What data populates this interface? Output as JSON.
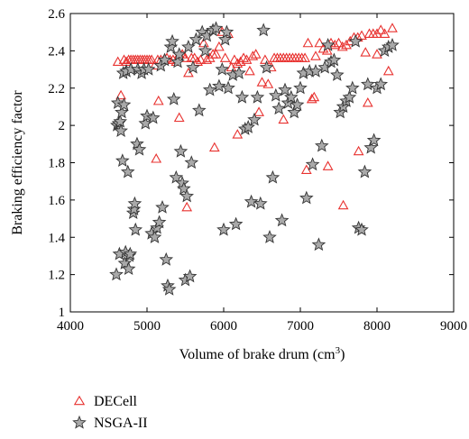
{
  "chart_data": {
    "type": "scatter",
    "title": "",
    "xlabel": "Volume of brake drum (cm",
    "xlabel_sup": "3",
    "xlabel_end": ")",
    "ylabel": "Braking efficiency factor",
    "xlim": [
      4000,
      9000
    ],
    "ylim": [
      1,
      2.6
    ],
    "xticks": [
      4000,
      5000,
      6000,
      7000,
      8000,
      9000
    ],
    "yticks": [
      1,
      1.2,
      1.4,
      1.6,
      1.8,
      2,
      2.2,
      2.4,
      2.6
    ],
    "grid": false,
    "legend_position": "below",
    "series": [
      {
        "name": "DECell",
        "marker": "triangle",
        "color": "#e8312f",
        "points": [
          [
            4620,
            2.34
          ],
          [
            4660,
            2.16
          ],
          [
            4700,
            2.35
          ],
          [
            4730,
            2.34
          ],
          [
            4760,
            2.35
          ],
          [
            4790,
            2.35
          ],
          [
            4820,
            2.35
          ],
          [
            4850,
            2.35
          ],
          [
            4880,
            2.35
          ],
          [
            4910,
            2.35
          ],
          [
            4940,
            2.35
          ],
          [
            4970,
            2.35
          ],
          [
            5000,
            2.35
          ],
          [
            5030,
            2.35
          ],
          [
            5060,
            2.35
          ],
          [
            5100,
            2.32
          ],
          [
            5140,
            2.35
          ],
          [
            5180,
            2.35
          ],
          [
            5220,
            2.35
          ],
          [
            5260,
            2.36
          ],
          [
            5300,
            2.35
          ],
          [
            5340,
            2.35
          ],
          [
            5380,
            2.34
          ],
          [
            5420,
            2.38
          ],
          [
            5460,
            2.38
          ],
          [
            5500,
            2.36
          ],
          [
            5540,
            2.28
          ],
          [
            5580,
            2.36
          ],
          [
            5620,
            2.36
          ],
          [
            5660,
            2.34
          ],
          [
            5700,
            2.35
          ],
          [
            5740,
            2.44
          ],
          [
            5780,
            2.35
          ],
          [
            5820,
            2.36
          ],
          [
            5860,
            2.38
          ],
          [
            5900,
            2.38
          ],
          [
            5940,
            2.42
          ],
          [
            5980,
            2.5
          ],
          [
            6020,
            2.36
          ],
          [
            6060,
            2.49
          ],
          [
            6100,
            2.31
          ],
          [
            6140,
            2.35
          ],
          [
            6180,
            2.33
          ],
          [
            6220,
            2.34
          ],
          [
            6260,
            2.36
          ],
          [
            6300,
            2.35
          ],
          [
            6340,
            2.29
          ],
          [
            6380,
            2.37
          ],
          [
            6420,
            2.38
          ],
          [
            6460,
            2.07
          ],
          [
            6500,
            2.23
          ],
          [
            6540,
            2.35
          ],
          [
            6580,
            2.22
          ],
          [
            6620,
            2.31
          ],
          [
            6660,
            2.36
          ],
          [
            6700,
            2.36
          ],
          [
            6740,
            2.36
          ],
          [
            6780,
            2.36
          ],
          [
            6820,
            2.36
          ],
          [
            6860,
            2.36
          ],
          [
            6900,
            2.36
          ],
          [
            6940,
            2.36
          ],
          [
            6980,
            2.36
          ],
          [
            7020,
            2.36
          ],
          [
            7060,
            2.36
          ],
          [
            7100,
            2.44
          ],
          [
            7150,
            2.14
          ],
          [
            7200,
            2.37
          ],
          [
            7250,
            2.44
          ],
          [
            7300,
            2.41
          ],
          [
            7350,
            2.4
          ],
          [
            7400,
            2.44
          ],
          [
            7450,
            2.43
          ],
          [
            7500,
            2.44
          ],
          [
            7550,
            2.42
          ],
          [
            7600,
            2.43
          ],
          [
            7650,
            2.45
          ],
          [
            7700,
            2.47
          ],
          [
            7750,
            2.47
          ],
          [
            7800,
            2.48
          ],
          [
            7850,
            2.39
          ],
          [
            7900,
            2.49
          ],
          [
            7950,
            2.49
          ],
          [
            8000,
            2.49
          ],
          [
            8050,
            2.51
          ],
          [
            8100,
            2.49
          ],
          [
            8150,
            2.29
          ],
          [
            8200,
            2.52
          ],
          [
            5120,
            1.82
          ],
          [
            5150,
            2.13
          ],
          [
            5420,
            2.04
          ],
          [
            5520,
            1.56
          ],
          [
            5880,
            1.88
          ],
          [
            6180,
            1.95
          ],
          [
            6780,
            2.03
          ],
          [
            7080,
            1.76
          ],
          [
            7180,
            2.15
          ],
          [
            7360,
            1.78
          ],
          [
            7560,
            1.57
          ],
          [
            7760,
            1.86
          ],
          [
            7880,
            2.12
          ],
          [
            8000,
            2.38
          ]
        ]
      },
      {
        "name": "NSGA-II",
        "marker": "star",
        "color": "#6e6e6e",
        "points": [
          [
            4600,
            1.2
          ],
          [
            4610,
            2.0
          ],
          [
            4620,
            2.12
          ],
          [
            4630,
            2.01
          ],
          [
            4640,
            1.31
          ],
          [
            4650,
            2.02
          ],
          [
            4660,
            1.97
          ],
          [
            4670,
            2.07
          ],
          [
            4680,
            1.81
          ],
          [
            4690,
            2.28
          ],
          [
            4700,
            2.11
          ],
          [
            4710,
            1.26
          ],
          [
            4720,
            1.32
          ],
          [
            4730,
            2.29
          ],
          [
            4750,
            1.75
          ],
          [
            4760,
            1.23
          ],
          [
            4770,
            1.3
          ],
          [
            4780,
            1.31
          ],
          [
            4790,
            2.3
          ],
          [
            4820,
            1.53
          ],
          [
            4830,
            1.55
          ],
          [
            4840,
            1.58
          ],
          [
            4850,
            1.44
          ],
          [
            4870,
            1.9
          ],
          [
            4880,
            2.3
          ],
          [
            4900,
            1.87
          ],
          [
            4930,
            2.28
          ],
          [
            4960,
            2.3
          ],
          [
            4980,
            2.01
          ],
          [
            5000,
            2.05
          ],
          [
            5020,
            2.3
          ],
          [
            5060,
            1.42
          ],
          [
            5080,
            2.04
          ],
          [
            5100,
            1.4
          ],
          [
            5130,
            1.45
          ],
          [
            5160,
            1.48
          ],
          [
            5180,
            2.32
          ],
          [
            5200,
            1.56
          ],
          [
            5230,
            2.35
          ],
          [
            5250,
            1.28
          ],
          [
            5270,
            1.14
          ],
          [
            5290,
            1.12
          ],
          [
            5310,
            2.42
          ],
          [
            5330,
            2.45
          ],
          [
            5350,
            2.14
          ],
          [
            5380,
            1.72
          ],
          [
            5400,
            2.34
          ],
          [
            5420,
            2.38
          ],
          [
            5440,
            1.86
          ],
          [
            5460,
            1.69
          ],
          [
            5480,
            1.66
          ],
          [
            5500,
            1.17
          ],
          [
            5520,
            1.62
          ],
          [
            5540,
            2.42
          ],
          [
            5560,
            1.19
          ],
          [
            5580,
            1.8
          ],
          [
            5600,
            2.31
          ],
          [
            5640,
            2.46
          ],
          [
            5680,
            2.08
          ],
          [
            5720,
            2.5
          ],
          [
            5760,
            2.4
          ],
          [
            5780,
            2.48
          ],
          [
            5820,
            2.19
          ],
          [
            5860,
            2.51
          ],
          [
            5900,
            2.52
          ],
          [
            5940,
            2.21
          ],
          [
            5980,
            2.3
          ],
          [
            6000,
            1.44
          ],
          [
            6020,
            2.46
          ],
          [
            6040,
            2.5
          ],
          [
            6060,
            2.2
          ],
          [
            6120,
            2.27
          ],
          [
            6160,
            1.47
          ],
          [
            6200,
            2.28
          ],
          [
            6240,
            2.15
          ],
          [
            6280,
            1.98
          ],
          [
            6320,
            1.99
          ],
          [
            6360,
            1.59
          ],
          [
            6400,
            2.03
          ],
          [
            6440,
            2.15
          ],
          [
            6480,
            1.58
          ],
          [
            6520,
            2.51
          ],
          [
            6560,
            2.31
          ],
          [
            6600,
            1.4
          ],
          [
            6640,
            1.72
          ],
          [
            6680,
            2.16
          ],
          [
            6720,
            2.09
          ],
          [
            6760,
            1.49
          ],
          [
            6800,
            2.19
          ],
          [
            6840,
            2.12
          ],
          [
            6880,
            2.15
          ],
          [
            6920,
            2.07
          ],
          [
            6960,
            2.11
          ],
          [
            7000,
            2.2
          ],
          [
            7040,
            2.28
          ],
          [
            7080,
            1.61
          ],
          [
            7120,
            2.29
          ],
          [
            7160,
            1.79
          ],
          [
            7200,
            2.29
          ],
          [
            7240,
            1.36
          ],
          [
            7280,
            1.89
          ],
          [
            7320,
            2.31
          ],
          [
            7360,
            2.43
          ],
          [
            7400,
            2.34
          ],
          [
            7440,
            2.35
          ],
          [
            7480,
            2.27
          ],
          [
            7520,
            2.07
          ],
          [
            7560,
            2.1
          ],
          [
            7600,
            2.13
          ],
          [
            7640,
            2.15
          ],
          [
            7680,
            2.2
          ],
          [
            7720,
            2.45
          ],
          [
            7760,
            1.45
          ],
          [
            7800,
            1.44
          ],
          [
            7840,
            1.75
          ],
          [
            7880,
            2.22
          ],
          [
            7920,
            1.88
          ],
          [
            7960,
            1.92
          ],
          [
            8000,
            2.2
          ],
          [
            8050,
            2.22
          ],
          [
            8100,
            2.4
          ],
          [
            8150,
            2.42
          ],
          [
            8200,
            2.43
          ]
        ]
      }
    ]
  }
}
